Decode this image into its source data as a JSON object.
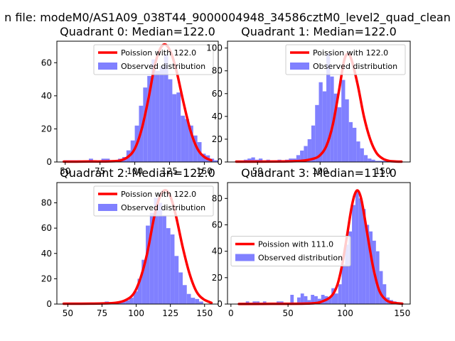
{
  "page": {
    "suptitle": "n file: modeM0/AS1A09_038T44_9000004948_34586cztM0_level2_quad_clean"
  },
  "colors": {
    "hist": "#8080ff",
    "fit": "#ff0000",
    "background": "#ffffff"
  },
  "chart_data": [
    {
      "type": "histogram",
      "title": "Quadrant 0: Median=122.0",
      "median": 122.0,
      "xlim": [
        44,
        160
      ],
      "ylim": [
        0,
        73
      ],
      "xticks": [
        50,
        75,
        100,
        125,
        150
      ],
      "yticks": [
        0,
        20,
        40,
        60
      ],
      "legend": {
        "position": "top-right",
        "fit_label": "Poission with 122.0",
        "hist_label": "Observed distribution"
      },
      "bin_width": 3,
      "bins_start": 49,
      "hist_values": [
        1,
        1,
        1,
        1,
        0,
        0,
        2,
        1,
        0,
        2,
        2,
        1,
        0,
        2,
        3,
        7,
        13,
        22,
        34,
        45,
        52,
        62,
        55,
        58,
        65,
        50,
        41,
        42,
        28,
        26,
        22,
        16,
        12,
        5,
        4,
        2,
        1
      ],
      "fit_x": [
        49,
        58,
        67,
        76,
        85,
        90,
        95,
        100,
        105,
        110,
        114,
        118,
        122,
        126,
        130,
        135,
        140,
        145,
        150,
        155
      ],
      "fit_y": [
        0.2,
        0.2,
        0.3,
        0.3,
        0.5,
        1,
        3,
        8,
        20,
        39,
        57,
        68,
        71,
        66,
        55,
        36,
        19,
        8,
        3,
        1
      ]
    },
    {
      "type": "histogram",
      "title": "Quadrant 1: Median=122.0",
      "median": 122.0,
      "xlim": [
        26,
        172
      ],
      "ylim": [
        0,
        106
      ],
      "xticks": [
        50,
        100,
        150
      ],
      "yticks": [
        0,
        20,
        40,
        60,
        80,
        100
      ],
      "legend": {
        "position": "top-right",
        "fit_label": "Poission with 122.0",
        "hist_label": "Observed distribution"
      },
      "bin_width": 3,
      "bins_start": 33,
      "hist_values": [
        1,
        1,
        2,
        3,
        4,
        2,
        3,
        1,
        2,
        1,
        1,
        2,
        1,
        2,
        3,
        3,
        6,
        10,
        14,
        20,
        32,
        50,
        70,
        62,
        95,
        75,
        60,
        48,
        72,
        55,
        35,
        30,
        18,
        12,
        6,
        3,
        2,
        1,
        1,
        1,
        1
      ],
      "fit_x": [
        33,
        50,
        70,
        85,
        95,
        100,
        105,
        110,
        115,
        119,
        122,
        125,
        130,
        135,
        140,
        145,
        150,
        155,
        160,
        165
      ],
      "fit_y": [
        0.3,
        0.3,
        0.5,
        1,
        3,
        6,
        14,
        32,
        62,
        88,
        95,
        90,
        68,
        40,
        20,
        8,
        3,
        1,
        0.5,
        0.3
      ]
    },
    {
      "type": "histogram",
      "title": "Quadrant 2: Median=122.0",
      "median": 122.0,
      "xlim": [
        42,
        160
      ],
      "ylim": [
        0,
        96
      ],
      "xticks": [
        50,
        75,
        100,
        125,
        150
      ],
      "yticks": [
        0,
        20,
        40,
        60,
        80
      ],
      "legend": {
        "position": "top-right",
        "fit_label": "Poission with 122.0",
        "hist_label": "Observed distribution"
      },
      "bin_width": 3,
      "bins_start": 47,
      "hist_values": [
        1,
        1,
        1,
        1,
        1,
        1,
        1,
        1,
        1,
        1,
        2,
        1,
        1,
        2,
        2,
        3,
        5,
        10,
        20,
        35,
        62,
        72,
        84,
        80,
        70,
        60,
        55,
        38,
        25,
        15,
        8,
        5,
        4,
        2
      ],
      "fit_x": [
        47,
        60,
        75,
        85,
        92,
        98,
        103,
        108,
        113,
        117,
        121,
        125,
        129,
        134,
        139,
        144,
        149,
        155
      ],
      "fit_y": [
        0.3,
        0.3,
        0.5,
        1,
        3,
        8,
        20,
        40,
        68,
        84,
        90,
        85,
        70,
        45,
        24,
        10,
        4,
        1
      ]
    },
    {
      "type": "histogram",
      "title": "Quadrant 3: Median=111.0",
      "median": 111.0,
      "xlim": [
        -3,
        157
      ],
      "ylim": [
        0,
        92
      ],
      "xticks": [
        0,
        50,
        100,
        150
      ],
      "yticks": [
        0,
        20,
        40,
        60,
        80
      ],
      "legend": {
        "position": "center-left",
        "fit_label": "Poission with 111.0",
        "hist_label": "Observed distribution"
      },
      "bin_width": 3,
      "bins_start": 7,
      "hist_values": [
        1,
        1,
        2,
        1,
        2,
        2,
        1,
        2,
        1,
        1,
        1,
        2,
        2,
        1,
        1,
        7,
        1,
        5,
        8,
        6,
        3,
        7,
        6,
        4,
        7,
        6,
        5,
        12,
        8,
        15,
        30,
        45,
        55,
        75,
        85,
        80,
        72,
        60,
        55,
        48,
        40,
        25,
        15,
        5,
        3,
        2,
        1
      ],
      "fit_x": [
        7,
        40,
        70,
        80,
        88,
        93,
        97,
        101,
        105,
        108,
        111,
        114,
        117,
        121,
        125,
        130,
        136,
        142,
        150
      ],
      "fit_y": [
        0.1,
        0.2,
        0.5,
        2,
        6,
        14,
        28,
        48,
        70,
        82,
        86,
        80,
        66,
        45,
        26,
        10,
        3,
        1,
        0.3
      ]
    }
  ]
}
